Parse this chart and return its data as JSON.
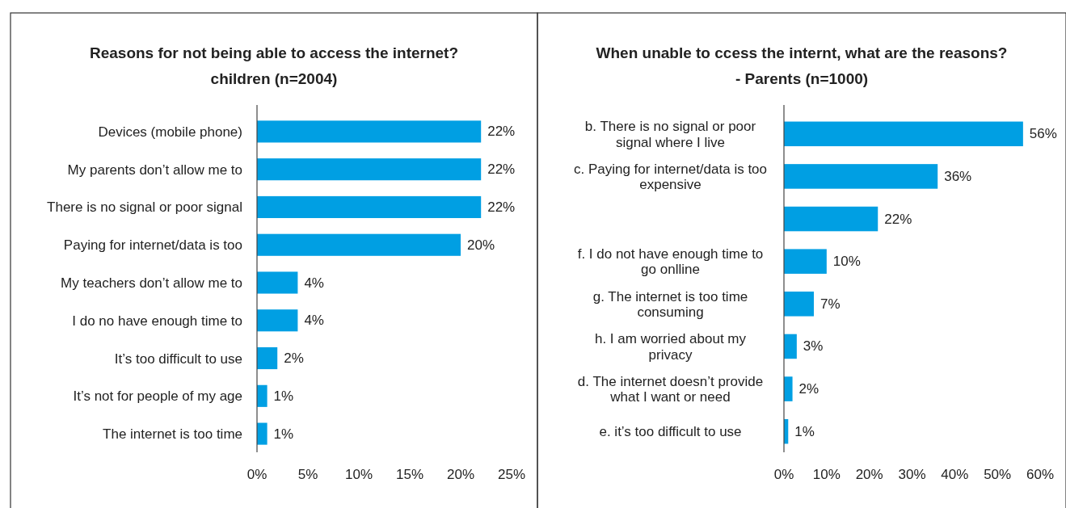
{
  "chart_data": [
    {
      "type": "bar",
      "orientation": "horizontal",
      "title": "Reasons for not being able to access the internet?",
      "subtitle": "children (n=2004)",
      "categories": [
        "Devices (mobile phone)",
        "My parents don’t allow me to",
        "There is no signal or poor signal",
        "Paying for internet/data is too",
        "My teachers don’t allow me to",
        "I do no have enough time to",
        "It’s too difficult to use",
        "It’s not for people of my age",
        "The internet is too time"
      ],
      "values": [
        22,
        22,
        22,
        20,
        4,
        4,
        2,
        1,
        1
      ],
      "color": "#009fe3",
      "value_labels": [
        "22%",
        "22%",
        "22%",
        "20%",
        "4%",
        "4%",
        "2%",
        "1%",
        "1%"
      ],
      "xlim": [
        0,
        25
      ],
      "xticks": [
        {
          "value": 0,
          "label": "0%"
        },
        {
          "value": 5,
          "label": "5%"
        },
        {
          "value": 10,
          "label": "10%"
        },
        {
          "value": 15,
          "label": "15%"
        },
        {
          "value": 20,
          "label": "20%"
        },
        {
          "value": 25,
          "label": "25%"
        }
      ],
      "grid": false
    },
    {
      "type": "bar",
      "orientation": "horizontal",
      "title": "When unable to ccess the internt, what are the reasons?",
      "subtitle": "- Parents (n=1000)",
      "categories": [
        "b. There is no signal or poor signal where I live",
        "c. Paying for internet/data is too expensive",
        null,
        "f. I do not have enough time to go onlline",
        "g. The internet is too time consuming",
        "h. I am worried about my privacy",
        "d. The internet doesn’t provide what I want or need",
        "e. it’s too difficult to use"
      ],
      "values": [
        56,
        36,
        22,
        10,
        7,
        3,
        2,
        1
      ],
      "color": "#009fe3",
      "value_labels": [
        "56%",
        "36%",
        "22%",
        "10%",
        "7%",
        "3%",
        "2%",
        "1%"
      ],
      "xlim": [
        0,
        60
      ],
      "xticks": [
        {
          "value": 0,
          "label": "0%"
        },
        {
          "value": 10,
          "label": "10%"
        },
        {
          "value": 20,
          "label": "20%"
        },
        {
          "value": 30,
          "label": "30%"
        },
        {
          "value": 40,
          "label": "40%"
        },
        {
          "value": 50,
          "label": "50%"
        },
        {
          "value": 60,
          "label": "60%"
        }
      ],
      "grid": false
    }
  ]
}
